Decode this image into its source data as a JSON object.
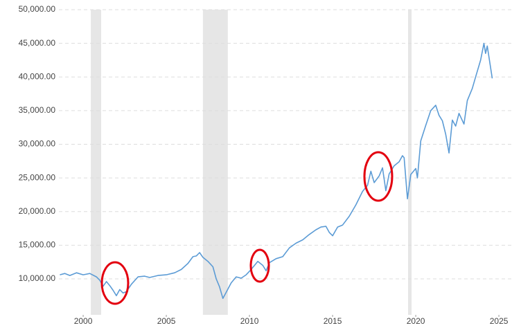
{
  "chart_data": {
    "type": "line",
    "x": [
      1998.6,
      1998.9,
      1999.2,
      1999.6,
      2000.0,
      2000.4,
      2000.8,
      2001.0,
      2001.2,
      2001.4,
      2001.6,
      2001.8,
      2002.0,
      2002.2,
      2002.4,
      2002.6,
      2002.9,
      2003.3,
      2003.7,
      2004.0,
      2004.5,
      2005.0,
      2005.5,
      2005.9,
      2006.3,
      2006.6,
      2006.8,
      2007.0,
      2007.2,
      2007.5,
      2007.8,
      2008.0,
      2008.2,
      2008.4,
      2008.6,
      2008.9,
      2009.2,
      2009.5,
      2009.8,
      2010.1,
      2010.5,
      2010.8,
      2011.0,
      2011.2,
      2011.6,
      2012.0,
      2012.4,
      2012.8,
      2013.2,
      2013.6,
      2014.0,
      2014.3,
      2014.6,
      2014.8,
      2015.0,
      2015.3,
      2015.6,
      2016.0,
      2016.4,
      2016.8,
      2017.1,
      2017.3,
      2017.5,
      2017.8,
      2018.0,
      2018.2,
      2018.4,
      2018.7,
      2019.0,
      2019.2,
      2019.3,
      2019.5,
      2019.7,
      2020.0,
      2020.1,
      2020.3,
      2020.6,
      2020.9,
      2021.2,
      2021.4,
      2021.6,
      2021.8,
      2022.0,
      2022.2,
      2022.4,
      2022.6,
      2022.9,
      2023.1,
      2023.4,
      2023.6,
      2023.9,
      2024.1,
      2024.2,
      2024.3,
      2024.6
    ],
    "values": [
      10600,
      10800,
      10500,
      10900,
      10600,
      10800,
      10300,
      9800,
      8900,
      9600,
      9000,
      8300,
      7500,
      8400,
      7900,
      8100,
      9200,
      10300,
      10400,
      10200,
      10500,
      10600,
      10900,
      11400,
      12300,
      13300,
      13400,
      13900,
      13200,
      12600,
      11800,
      10000,
      8800,
      7100,
      8000,
      9400,
      10300,
      10100,
      10600,
      11400,
      12600,
      12000,
      11200,
      12400,
      13000,
      13300,
      14600,
      15300,
      15800,
      16600,
      17300,
      17700,
      17800,
      16900,
      16400,
      17700,
      18000,
      19300,
      21000,
      23000,
      23900,
      26000,
      24300,
      25300,
      26500,
      23100,
      25600,
      26800,
      27400,
      28300,
      28000,
      21900,
      25500,
      26400,
      25000,
      30500,
      32800,
      35000,
      35800,
      34300,
      33500,
      31500,
      28700,
      33600,
      32700,
      34600,
      33000,
      36500,
      38300,
      40000,
      42500,
      45000,
      43500,
      44600,
      39800
    ],
    "color": "#5b9bd5",
    "recessions": [
      [
        2000.46,
        2001.08
      ],
      [
        2007.2,
        2008.7
      ],
      [
        2019.54,
        2019.75
      ]
    ],
    "recession_color": "#e6e6e6",
    "xlim": [
      1998.54,
      2025.83
    ],
    "xticks": [
      2000,
      2005,
      2010,
      2015,
      2020,
      2025
    ],
    "ylim": [
      4650,
      50000
    ],
    "yticks": [
      {
        "value": 10000,
        "label": "10,000.00"
      },
      {
        "value": 15000,
        "label": "15,000.00"
      },
      {
        "value": 20000,
        "label": "20,000.00"
      },
      {
        "value": 25000,
        "label": "25,000.00"
      },
      {
        "value": 30000,
        "label": "30,000.00"
      },
      {
        "value": 35000,
        "label": "35,000.00"
      },
      {
        "value": 40000,
        "label": "40,000.00"
      },
      {
        "value": 45000,
        "label": "45,000.00"
      },
      {
        "value": 50000,
        "label": "50,000.00"
      }
    ],
    "grid": true
  }
}
